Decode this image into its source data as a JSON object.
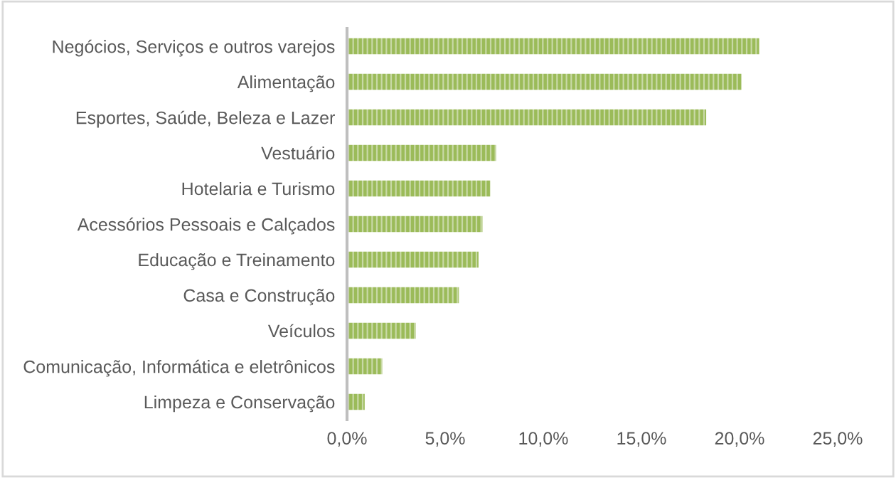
{
  "chart_data": {
    "type": "bar",
    "orientation": "horizontal",
    "categories": [
      "Negócios, Serviços e outros varejos",
      "Alimentação",
      "Esportes, Saúde, Beleza e Lazer",
      "Vestuário",
      "Hotelaria e Turismo",
      "Acessórios Pessoais e Calçados",
      "Educação e Treinamento",
      "Casa e Construção",
      "Veículos",
      "Comunicação, Informática e eletrônicos",
      "Limpeza e Conservação"
    ],
    "values": [
      21.0,
      20.1,
      18.3,
      7.6,
      7.3,
      6.9,
      6.7,
      5.7,
      3.5,
      1.8,
      0.9
    ],
    "color": "#9bbb59",
    "xlim": [
      0,
      25
    ],
    "xticks": [
      {
        "value": 0,
        "label": "0,0%"
      },
      {
        "value": 5,
        "label": "5,0%"
      },
      {
        "value": 10,
        "label": "10,0%"
      },
      {
        "value": 15,
        "label": "15,0%"
      },
      {
        "value": 20,
        "label": "20,0%"
      },
      {
        "value": 25,
        "label": "25,0%"
      }
    ],
    "grid": false,
    "legend": false
  }
}
